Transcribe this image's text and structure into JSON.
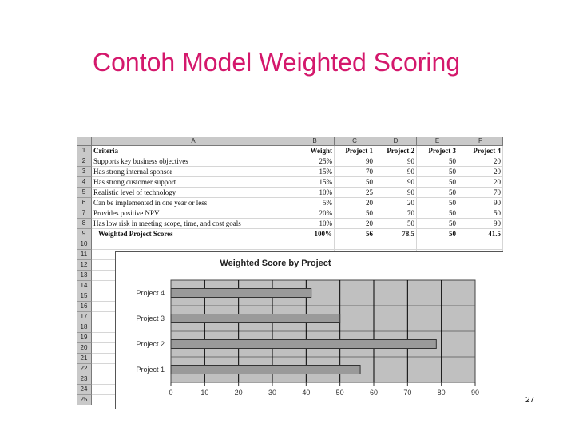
{
  "slide": {
    "title": "Contoh Model Weighted Scoring",
    "page_number": "27"
  },
  "sheet": {
    "column_headers": [
      "A",
      "B",
      "C",
      "D",
      "E",
      "F"
    ],
    "row_numbers": [
      "1",
      "2",
      "3",
      "4",
      "5",
      "6",
      "7",
      "8",
      "9",
      "10",
      "11",
      "12",
      "13",
      "14",
      "15",
      "16",
      "17",
      "18",
      "19",
      "20",
      "21",
      "22",
      "23",
      "24",
      "25"
    ],
    "header_row": [
      "Criteria",
      "Weight",
      "Project 1",
      "Project 2",
      "Project 3",
      "Project 4"
    ],
    "rows": [
      [
        "Supports key business objectives",
        "25%",
        "90",
        "90",
        "50",
        "20"
      ],
      [
        "Has strong internal sponsor",
        "15%",
        "70",
        "90",
        "50",
        "20"
      ],
      [
        "Has strong customer support",
        "15%",
        "50",
        "90",
        "50",
        "20"
      ],
      [
        "Realistic level of technology",
        "10%",
        "25",
        "90",
        "50",
        "70"
      ],
      [
        "Can be implemented in one year or less",
        "5%",
        "20",
        "20",
        "50",
        "90"
      ],
      [
        "Provides positive NPV",
        "20%",
        "50",
        "70",
        "50",
        "50"
      ],
      [
        "Has low risk in meeting scope, time, and cost goals",
        "10%",
        "20",
        "50",
        "50",
        "90"
      ]
    ],
    "total_row": [
      "Weighted Project Scores",
      "100%",
      "56",
      "78.5",
      "50",
      "41.5"
    ]
  },
  "chart_data": {
    "type": "bar",
    "orientation": "horizontal",
    "title": "Weighted Score by Project",
    "categories": [
      "Project 4",
      "Project 3",
      "Project 2",
      "Project 1"
    ],
    "values": [
      41.5,
      50,
      78.5,
      56
    ],
    "xlim": [
      0,
      90
    ],
    "xticks": [
      "0",
      "10",
      "20",
      "30",
      "40",
      "50",
      "60",
      "70",
      "80",
      "90"
    ],
    "xlabel": "",
    "ylabel": "",
    "grid": true,
    "colors": {
      "bar": "#9a9a9a",
      "plot_bg": "#c0c0c0",
      "grid": "#000000"
    }
  }
}
